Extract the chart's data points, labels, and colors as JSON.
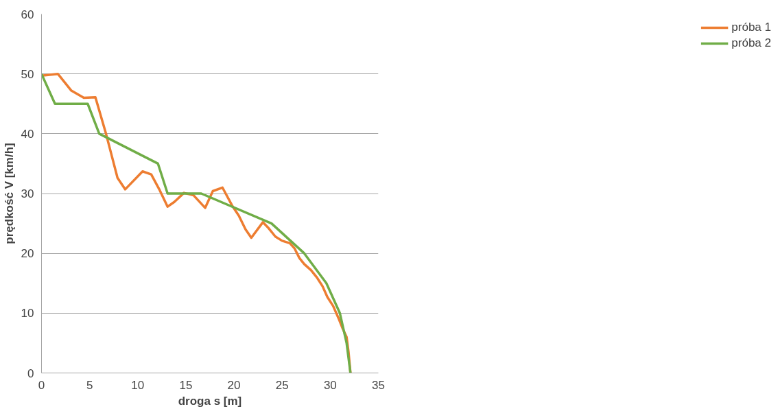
{
  "chart_data": {
    "type": "line",
    "xlabel": "droga s [m]",
    "ylabel": "prędkość V [km/h]",
    "xlim": [
      0,
      35
    ],
    "xticks": [
      0,
      5,
      10,
      15,
      20,
      25,
      30,
      35
    ],
    "ylim": [
      0,
      60
    ],
    "yticks": [
      0,
      10,
      20,
      30,
      40,
      50,
      60
    ],
    "grid": "y",
    "legend": "right",
    "line_style": "solid",
    "series": [
      {
        "name": "próba 1",
        "color": "#ed7d31",
        "x": [
          0,
          1.7,
          3.1,
          4.4,
          5.6,
          6.7,
          7.9,
          8.7,
          10.5,
          11.4,
          12.3,
          13.1,
          13.8,
          14.8,
          15.8,
          17.0,
          17.8,
          18.8,
          19.8,
          20.5,
          21.2,
          21.8,
          23.0,
          23.6,
          24.3,
          25.0,
          25.8,
          26.3,
          26.8,
          27.3,
          28.0,
          28.6,
          29.2,
          29.7,
          30.3,
          30.9,
          31.3,
          31.7,
          31.9,
          32.1
        ],
        "values": [
          49.7,
          50,
          47.2,
          46,
          46.1,
          40,
          32.6,
          30.7,
          33.7,
          33.2,
          30.5,
          27.8,
          28.6,
          30.1,
          29.7,
          27.6,
          30.4,
          31,
          28,
          26.3,
          24,
          22.6,
          25.2,
          24.2,
          22.8,
          22.1,
          21.7,
          20.8,
          19.2,
          18.2,
          17.2,
          16,
          14.5,
          12.7,
          11.2,
          9,
          7.4,
          6,
          3.5,
          0
        ]
      },
      {
        "name": "próba 2",
        "color": "#70ad47",
        "x": [
          0,
          1.4,
          4.8,
          6.0,
          12.1,
          13.1,
          16.6,
          23.9,
          27.3,
          29.6,
          31.0,
          31.7,
          32.1
        ],
        "values": [
          50,
          45,
          45,
          40,
          35,
          30,
          30,
          25,
          20,
          15,
          10,
          5,
          0
        ]
      }
    ]
  }
}
